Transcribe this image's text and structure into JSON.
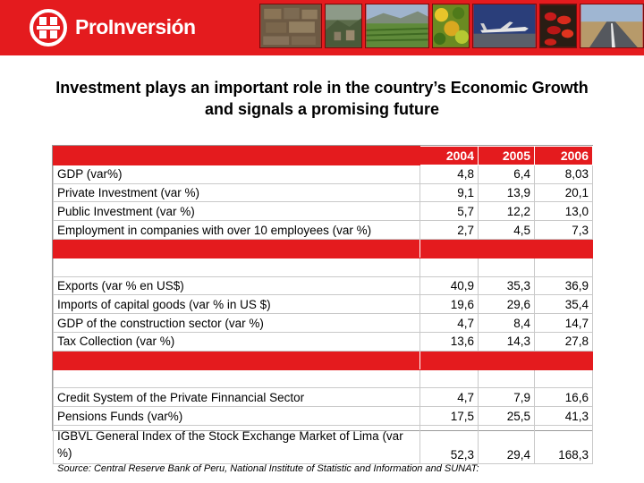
{
  "header": {
    "brand": "ProInversión",
    "bg_color": "#e41b1e",
    "logo_icon": "proinversion-logo-icon",
    "photos": [
      "stone-wall-photo",
      "ruins-photo",
      "farmland-photo",
      "vegetables-photo",
      "airplane-photo",
      "peppers-photo",
      "highway-photo"
    ]
  },
  "title": {
    "line1": "Investment plays an important role in the country’s Economic Growth",
    "line2": "and signals a promising future"
  },
  "table": {
    "years": [
      "2004",
      "2005",
      "2006"
    ],
    "group1": [
      {
        "label": "GDP (var%)",
        "values": [
          "4,8",
          "6,4",
          "8,03"
        ]
      },
      {
        "label": "Private Investment (var %)",
        "values": [
          "9,1",
          "13,9",
          "20,1"
        ]
      },
      {
        "label": "Public Investment (var %)",
        "values": [
          "5,7",
          "12,2",
          "13,0"
        ]
      },
      {
        "label": "Employment in companies with over 10 employees (var %)",
        "values": [
          "2,7",
          "4,5",
          "7,3"
        ]
      }
    ],
    "group2": [
      {
        "label": "Exports (var % en US$)",
        "values": [
          "40,9",
          "35,3",
          "36,9"
        ]
      },
      {
        "label": "Imports of capital goods (var % in US $)",
        "values": [
          "19,6",
          "29,6",
          "35,4"
        ]
      },
      {
        "label": "GDP of the construction sector (var %)",
        "values": [
          "4,7",
          "8,4",
          "14,7"
        ]
      },
      {
        "label": "Tax Collection (var %)",
        "values": [
          "13,6",
          "14,3",
          "27,8"
        ]
      }
    ],
    "group3": [
      {
        "label": "Credit System of the Private Finnancial Sector",
        "values": [
          "4,7",
          "7,9",
          "16,6"
        ]
      },
      {
        "label": "Pensions Funds (var%)",
        "values": [
          "17,5",
          "25,5",
          "41,3"
        ]
      }
    ],
    "igbvl": {
      "label": "IGBVL General Index of the Stock Exchange Market of Lima (var %)",
      "values": [
        "52,3",
        "29,4",
        "168,3"
      ]
    }
  },
  "source": "Source: Central Reserve Bank of Peru, National Institute of Statistic and Information and SUNAT:"
}
